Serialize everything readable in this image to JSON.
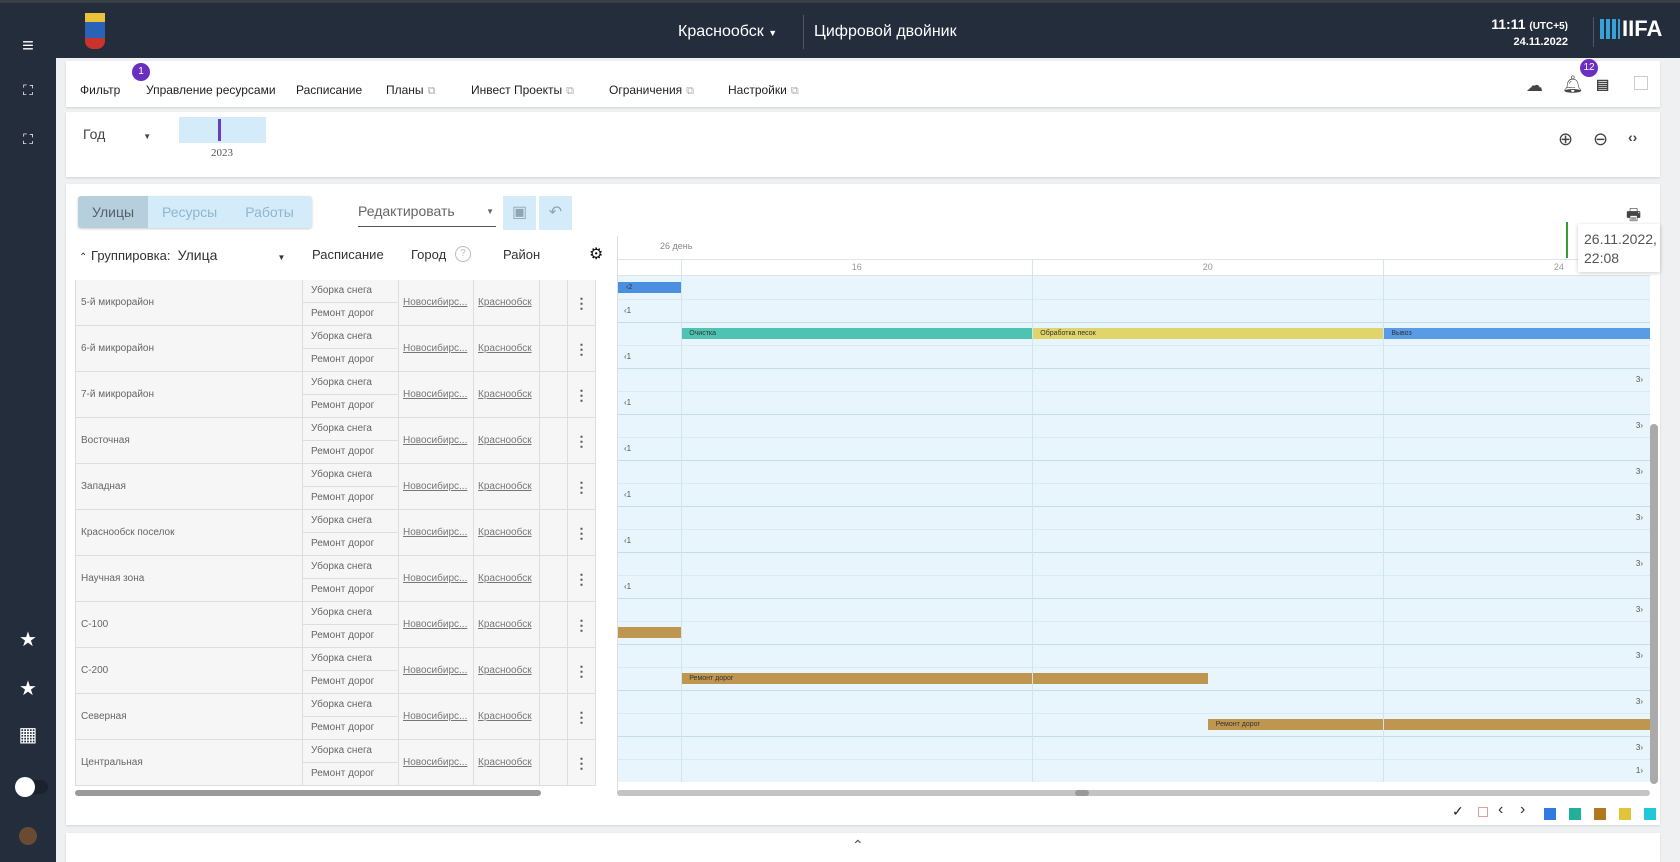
{
  "header": {
    "city": "Краснообск",
    "app_title": "Цифровой двойник",
    "time": "11:11",
    "tz": "(UTC+5)",
    "date": "24.11.2022",
    "brand": "IIFA"
  },
  "nav": {
    "items": [
      {
        "label": "Фильтр",
        "external": false,
        "badge": "1"
      },
      {
        "label": "Управление ресурсами",
        "external": false
      },
      {
        "label": "Расписание",
        "external": false
      },
      {
        "label": "Планы",
        "external": true
      },
      {
        "label": "Инвест Проекты",
        "external": true
      },
      {
        "label": "Ограничения",
        "external": true
      },
      {
        "label": "Настройки",
        "external": true
      }
    ],
    "notifications_badge": "12",
    "icons": [
      "cloud-upload-icon",
      "bell-icon",
      "excel-icon",
      "broken-image-icon"
    ]
  },
  "period": {
    "scale": "Год",
    "year": "2023"
  },
  "toolbar": {
    "tabs": [
      "Улицы",
      "Ресурсы",
      "Работы"
    ],
    "active_tab": "Улицы",
    "mode": "Редактировать"
  },
  "table": {
    "grouping_label": "Группировка:",
    "grouping_value": "Улица",
    "columns": [
      "Расписание",
      "Город",
      "Район"
    ],
    "rows": [
      {
        "name": "5-й микрорайон",
        "city": "Новосибирс...",
        "district": "Краснообск"
      },
      {
        "name": "6-й микрорайон",
        "city": "Новосибирс...",
        "district": "Краснообск"
      },
      {
        "name": "7-й микрорайон",
        "city": "Новосибирс...",
        "district": "Краснообск"
      },
      {
        "name": "Восточная",
        "city": "Новосибирс...",
        "district": "Краснообск"
      },
      {
        "name": "Западная",
        "city": "Новосибирс...",
        "district": "Краснообск"
      },
      {
        "name": "Краснообск поселок",
        "city": "Новосибирс...",
        "district": "Краснообск"
      },
      {
        "name": "Научная зона",
        "city": "Новосибирс...",
        "district": "Краснообск"
      },
      {
        "name": "С-100",
        "city": "Новосибирс...",
        "district": "Краснообск"
      },
      {
        "name": "С-200",
        "city": "Новосибирс...",
        "district": "Краснообск"
      },
      {
        "name": "Северная",
        "city": "Новосибирс...",
        "district": "Краснообск"
      },
      {
        "name": "Центральная",
        "city": "Новосибирс...",
        "district": "Краснообск"
      }
    ],
    "schedules": [
      "Уборка снега",
      "Ремонт дорог"
    ]
  },
  "gantt": {
    "scale_label": "26 день",
    "ticks": [
      "16",
      "20",
      "24"
    ],
    "tooltip": "26.11.2022, 22:08",
    "view_start_day": 13.28,
    "view_end_day": 25.05,
    "bars": [
      {
        "row": 0,
        "sub": 0,
        "start": 13.0,
        "end": 14,
        "label": "‹2",
        "color": "#4a8fe0"
      },
      {
        "row": 1,
        "sub": 0,
        "start": 14,
        "end": 18,
        "label": "Очистка",
        "color": "#4fc3b3"
      },
      {
        "row": 1,
        "sub": 0,
        "start": 18,
        "end": 22,
        "label": "Обработка песок",
        "color": "#e0d46a"
      },
      {
        "row": 1,
        "sub": 0,
        "start": 22,
        "end": 26,
        "label": "Вывоз",
        "color": "#5a9be8"
      },
      {
        "row": 7,
        "sub": 1,
        "start": 13.0,
        "end": 14,
        "label": "",
        "color": "#bf9650"
      },
      {
        "row": 8,
        "sub": 1,
        "start": 14,
        "end": 20,
        "label": "Ремонт дорог",
        "color": "#bf9650"
      },
      {
        "row": 9,
        "sub": 1,
        "start": 20,
        "end": 26,
        "label": "Ремонт дорог",
        "color": "#bf9650"
      }
    ],
    "markers": [
      {
        "row": 0,
        "sub": 1,
        "text": "‹1",
        "side": "left"
      },
      {
        "row": 1,
        "sub": 1,
        "text": "‹1",
        "side": "left"
      },
      {
        "row": 2,
        "sub": 0,
        "text": "3›",
        "side": "right"
      },
      {
        "row": 2,
        "sub": 1,
        "text": "‹1",
        "side": "left"
      },
      {
        "row": 3,
        "sub": 0,
        "text": "3›",
        "side": "right"
      },
      {
        "row": 3,
        "sub": 1,
        "text": "‹1",
        "side": "left"
      },
      {
        "row": 4,
        "sub": 0,
        "text": "3›",
        "side": "right"
      },
      {
        "row": 4,
        "sub": 1,
        "text": "‹1",
        "side": "left"
      },
      {
        "row": 5,
        "sub": 0,
        "text": "3›",
        "side": "right"
      },
      {
        "row": 5,
        "sub": 1,
        "text": "‹1",
        "side": "left"
      },
      {
        "row": 6,
        "sub": 0,
        "text": "3›",
        "side": "right"
      },
      {
        "row": 6,
        "sub": 1,
        "text": "‹1",
        "side": "left"
      },
      {
        "row": 7,
        "sub": 0,
        "text": "3›",
        "side": "right"
      },
      {
        "row": 8,
        "sub": 0,
        "text": "3›",
        "side": "right"
      },
      {
        "row": 9,
        "sub": 0,
        "text": "3›",
        "side": "right"
      },
      {
        "row": 10,
        "sub": 0,
        "text": "3›",
        "side": "right"
      },
      {
        "row": 10,
        "sub": 1,
        "text": "1›",
        "side": "right"
      }
    ]
  },
  "legend": {
    "colors": [
      "#2f7be0",
      "#22b09a",
      "#b07a1c",
      "#e0c43a",
      "#22c8d8"
    ]
  }
}
